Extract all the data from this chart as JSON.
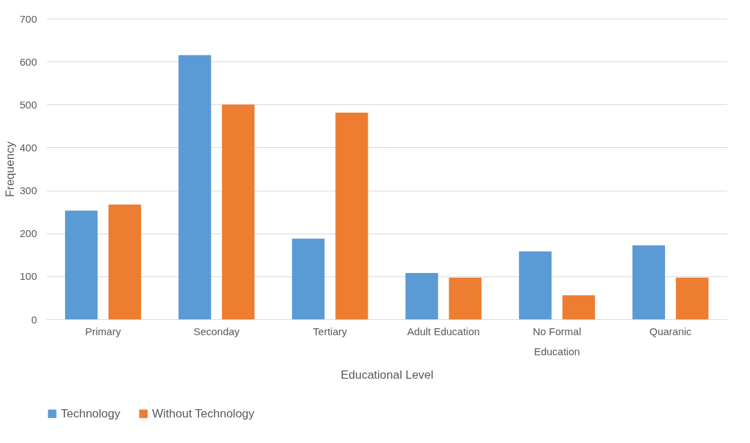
{
  "chart_data": {
    "type": "bar",
    "xlabel": "Educational Level",
    "ylabel": "Frequency",
    "categories": [
      "Primary",
      "Seconday",
      "Tertiary",
      "Adult Education",
      "No Formal Education",
      "Quaranic"
    ],
    "series": [
      {
        "name": "Technology",
        "color": "#5b9bd5",
        "values": [
          253,
          615,
          188,
          108,
          158,
          172
        ]
      },
      {
        "name": "Without Technology",
        "color": "#ed7d31",
        "values": [
          267,
          500,
          481,
          97,
          56,
          97
        ]
      }
    ],
    "ylim": [
      0,
      700
    ],
    "yticks": [
      0,
      100,
      200,
      300,
      400,
      500,
      600,
      700
    ],
    "grid": "y",
    "legend": "bottom"
  }
}
